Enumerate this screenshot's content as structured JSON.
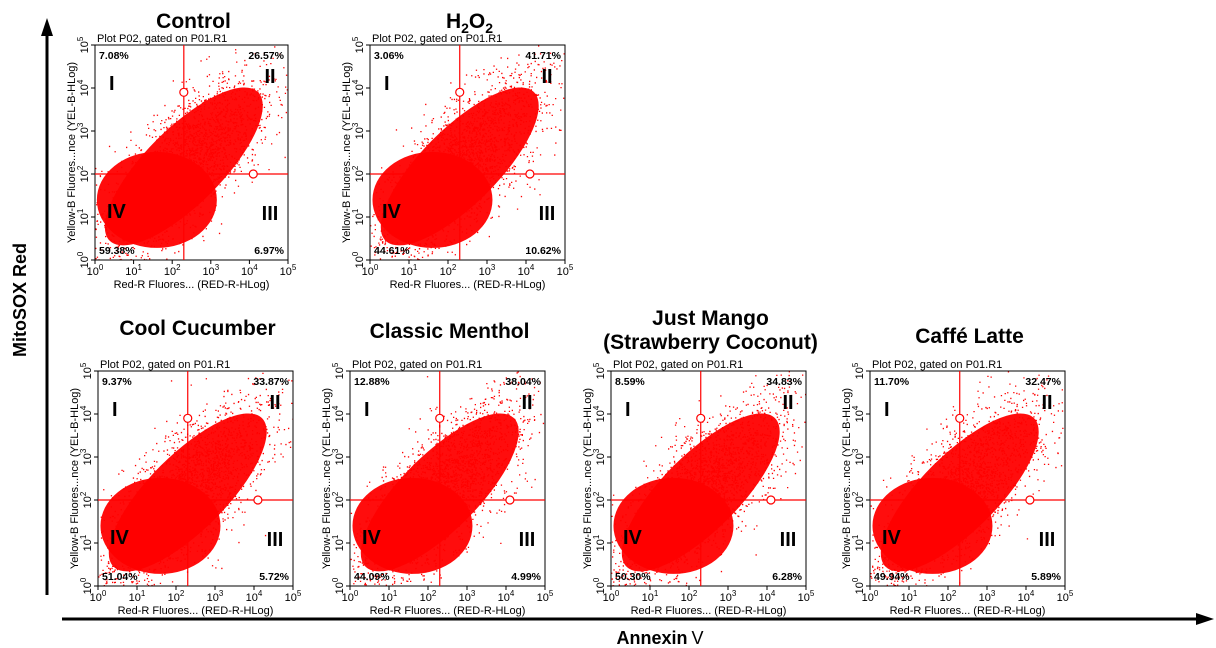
{
  "figure": {
    "y_label": "MitoSOX Red",
    "x_label": "Annexin",
    "x_label_suffix": "V",
    "dot_color": "#ff0000"
  },
  "chart_data": [
    {
      "type": "scatter",
      "title": "Control",
      "title_main": "Control",
      "title_sub": "",
      "gate": "Plot P02, gated on P01.R1",
      "xlabel": "Red-R Fluores... (RED-R-HLog)",
      "ylabel": "Yellow-B Fluores...nce (YEL-B-HLog)",
      "xscale": "log",
      "yscale": "log",
      "xlim": [
        1,
        100000
      ],
      "ylim": [
        1,
        100000
      ],
      "quadrant_gate": [
        200,
        100
      ],
      "quadrants": {
        "I": "7.08%",
        "II": "26.57%",
        "III": "6.97%",
        "IV": "59.38%"
      }
    },
    {
      "type": "scatter",
      "title": "H2O2",
      "title_main": "H",
      "title_sub": "2",
      "title_main2": "O",
      "title_sub2": "2",
      "gate": "Plot P02, gated on P01.R1",
      "xlabel": "Red-R Fluores... (RED-R-HLog)",
      "ylabel": "Yellow-B Fluores...nce (YEL-B-HLog)",
      "xscale": "log",
      "yscale": "log",
      "xlim": [
        1,
        100000
      ],
      "ylim": [
        1,
        100000
      ],
      "quadrant_gate": [
        200,
        100
      ],
      "quadrants": {
        "I": "3.06%",
        "II": "41.71%",
        "III": "10.62%",
        "IV": "44.61%"
      }
    },
    {
      "type": "scatter",
      "title": "Cool Cucumber",
      "title_main": "Cool Cucumber",
      "title_sub": "",
      "gate": "Plot P02, gated on P01.R1",
      "xlabel": "Red-R Fluores... (RED-R-HLog)",
      "ylabel": "Yellow-B Fluores...nce (YEL-B-HLog)",
      "xscale": "log",
      "yscale": "log",
      "xlim": [
        1,
        100000
      ],
      "ylim": [
        1,
        100000
      ],
      "quadrant_gate": [
        200,
        100
      ],
      "quadrants": {
        "I": "9.37%",
        "II": "33.87%",
        "III": "5.72%",
        "IV": "51.04%"
      }
    },
    {
      "type": "scatter",
      "title": "Classic Menthol",
      "title_main": "Classic Menthol",
      "title_sub": "",
      "gate": "Plot P02, gated on P01.R1",
      "xlabel": "Red-R Fluores... (RED-R-HLog)",
      "ylabel": "Yellow-B Fluores...nce (YEL-B-HLog)",
      "xscale": "log",
      "yscale": "log",
      "xlim": [
        1,
        100000
      ],
      "ylim": [
        1,
        100000
      ],
      "quadrant_gate": [
        200,
        100
      ],
      "quadrants": {
        "I": "12.88%",
        "II": "38.04%",
        "III": "4.99%",
        "IV": "44.09%"
      }
    },
    {
      "type": "scatter",
      "title": "Just Mango (Strawberry Coconut)",
      "title_main": "Just Mango",
      "title_line2": "(Strawberry Coconut)",
      "title_sub": "",
      "gate": "Plot P02, gated on P01.R1",
      "xlabel": "Red-R Fluores... (RED-R-HLog)",
      "ylabel": "Yellow-B Fluores...nce (YEL-B-HLog)",
      "xscale": "log",
      "yscale": "log",
      "xlim": [
        1,
        100000
      ],
      "ylim": [
        1,
        100000
      ],
      "quadrant_gate": [
        200,
        100
      ],
      "quadrants": {
        "I": "8.59%",
        "II": "34.83%",
        "III": "6.28%",
        "IV": "50.30%"
      }
    },
    {
      "type": "scatter",
      "title": "Caffé Latte",
      "title_main": "Caffé Latte",
      "title_sub": "",
      "gate": "Plot P02, gated on P01.R1",
      "xlabel": "Red-R Fluores... (RED-R-HLog)",
      "ylabel": "Yellow-B Fluores...nce (YEL-B-HLog)",
      "xscale": "log",
      "yscale": "log",
      "xlim": [
        1,
        100000
      ],
      "ylim": [
        1,
        100000
      ],
      "quadrant_gate": [
        200,
        100
      ],
      "quadrants": {
        "I": "11.70%",
        "II": "32.47%",
        "III": "5.89%",
        "IV": "49.94%"
      }
    }
  ]
}
